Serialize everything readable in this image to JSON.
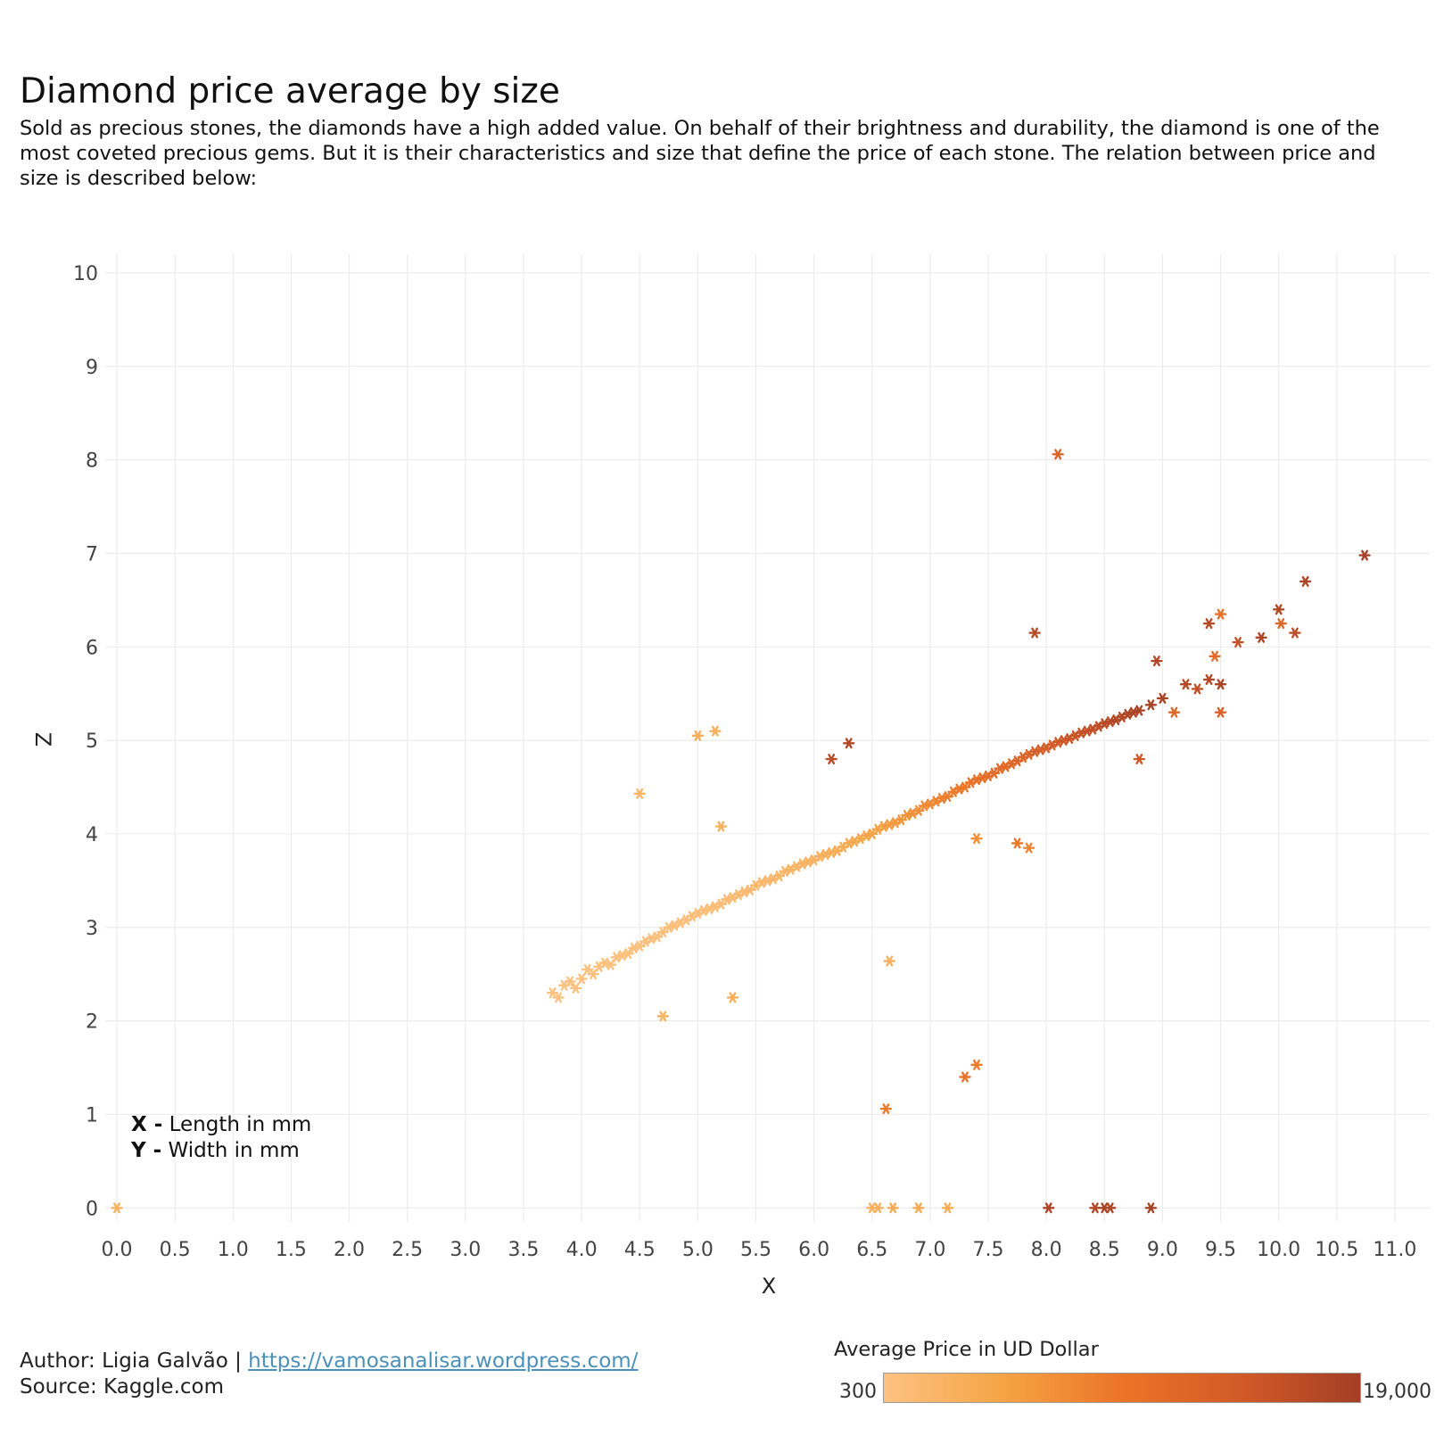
{
  "header": {
    "title": "Diamond price average by size",
    "subtitle": "Sold as precious stones, the diamonds have a high added value. On behalf of their brightness and durability, the diamond is one of the most coveted precious gems. But it is their characteristics and size that define the price of each stone. The relation between price and size is described below:"
  },
  "notes": {
    "x_key": "X -",
    "x_text": "Length in mm",
    "y_key": "Y -",
    "y_text": "Width in mm"
  },
  "footer": {
    "author_prefix": "Author: Ligia Galvão | ",
    "author_link": "https://vamosanalisar.wordpress.com/",
    "source": "Source: Kaggle.com"
  },
  "legend": {
    "title": "Average Price in UD Dollar",
    "min_label": "300",
    "max_label": "19,000",
    "colors": [
      "#fdc281",
      "#f5a445",
      "#ec7427",
      "#d25a27",
      "#a33f26"
    ]
  },
  "chart_data": {
    "type": "scatter",
    "title": "Diamond price average by size",
    "xlabel": "X",
    "ylabel": "Z",
    "xlim": [
      -0.1,
      11.3
    ],
    "ylim": [
      -0.15,
      10.2
    ],
    "xticks": [
      0.0,
      0.5,
      1.0,
      1.5,
      2.0,
      2.5,
      3.0,
      3.5,
      4.0,
      4.5,
      5.0,
      5.5,
      6.0,
      6.5,
      7.0,
      7.5,
      8.0,
      8.5,
      9.0,
      9.5,
      10.0,
      10.5,
      11.0
    ],
    "xtick_labels": [
      "0.0",
      "0.5",
      "1.0",
      "1.5",
      "2.0",
      "2.5",
      "3.0",
      "3.5",
      "4.0",
      "4.5",
      "5.0",
      "5.5",
      "6.0",
      "6.5",
      "7.0",
      "7.5",
      "8.0",
      "8.5",
      "9.0",
      "9.5",
      "10.0",
      "10.5",
      "11.0"
    ],
    "yticks": [
      0,
      1,
      2,
      3,
      4,
      5,
      6,
      7,
      8,
      9,
      10
    ],
    "ytick_labels": [
      "0",
      "1",
      "2",
      "3",
      "4",
      "5",
      "6",
      "7",
      "8",
      "9",
      "10"
    ],
    "grid": true,
    "color_metric": "Average Price in UD Dollar",
    "color_range": [
      300,
      19000
    ],
    "marker": "asterisk",
    "points": [
      {
        "x": 0.0,
        "z": 0.0,
        "price": 3000
      },
      {
        "x": 3.75,
        "z": 2.3,
        "price": 350
      },
      {
        "x": 3.8,
        "z": 2.25,
        "price": 360
      },
      {
        "x": 3.85,
        "z": 2.38,
        "price": 380
      },
      {
        "x": 3.9,
        "z": 2.42,
        "price": 400
      },
      {
        "x": 3.95,
        "z": 2.35,
        "price": 410
      },
      {
        "x": 4.0,
        "z": 2.45,
        "price": 430
      },
      {
        "x": 4.05,
        "z": 2.55,
        "price": 450
      },
      {
        "x": 4.1,
        "z": 2.5,
        "price": 460
      },
      {
        "x": 4.15,
        "z": 2.58,
        "price": 480
      },
      {
        "x": 4.2,
        "z": 2.62,
        "price": 500
      },
      {
        "x": 4.25,
        "z": 2.6,
        "price": 520
      },
      {
        "x": 4.3,
        "z": 2.68,
        "price": 540
      },
      {
        "x": 4.35,
        "z": 2.7,
        "price": 560
      },
      {
        "x": 4.4,
        "z": 2.72,
        "price": 590
      },
      {
        "x": 4.45,
        "z": 2.78,
        "price": 620
      },
      {
        "x": 4.5,
        "z": 2.8,
        "price": 650
      },
      {
        "x": 4.55,
        "z": 2.85,
        "price": 680
      },
      {
        "x": 4.6,
        "z": 2.88,
        "price": 710
      },
      {
        "x": 4.65,
        "z": 2.9,
        "price": 740
      },
      {
        "x": 4.7,
        "z": 2.95,
        "price": 780
      },
      {
        "x": 4.75,
        "z": 3.0,
        "price": 820
      },
      {
        "x": 4.8,
        "z": 3.02,
        "price": 860
      },
      {
        "x": 4.85,
        "z": 3.05,
        "price": 900
      },
      {
        "x": 4.9,
        "z": 3.08,
        "price": 950
      },
      {
        "x": 4.95,
        "z": 3.12,
        "price": 1000
      },
      {
        "x": 5.0,
        "z": 3.15,
        "price": 1050
      },
      {
        "x": 5.05,
        "z": 3.18,
        "price": 1100
      },
      {
        "x": 5.1,
        "z": 3.2,
        "price": 1150
      },
      {
        "x": 5.15,
        "z": 3.22,
        "price": 1200
      },
      {
        "x": 5.2,
        "z": 3.25,
        "price": 1280
      },
      {
        "x": 5.25,
        "z": 3.3,
        "price": 1350
      },
      {
        "x": 5.3,
        "z": 3.32,
        "price": 1420
      },
      {
        "x": 5.35,
        "z": 3.35,
        "price": 1500
      },
      {
        "x": 5.4,
        "z": 3.38,
        "price": 1600
      },
      {
        "x": 5.45,
        "z": 3.4,
        "price": 1680
      },
      {
        "x": 5.5,
        "z": 3.45,
        "price": 1750
      },
      {
        "x": 5.55,
        "z": 3.48,
        "price": 1850
      },
      {
        "x": 5.6,
        "z": 3.5,
        "price": 1950
      },
      {
        "x": 5.65,
        "z": 3.52,
        "price": 2050
      },
      {
        "x": 5.7,
        "z": 3.55,
        "price": 2150
      },
      {
        "x": 5.75,
        "z": 3.6,
        "price": 2280
      },
      {
        "x": 5.8,
        "z": 3.62,
        "price": 2400
      },
      {
        "x": 5.85,
        "z": 3.65,
        "price": 2500
      },
      {
        "x": 5.9,
        "z": 3.68,
        "price": 2600
      },
      {
        "x": 5.95,
        "z": 3.7,
        "price": 2750
      },
      {
        "x": 6.0,
        "z": 3.72,
        "price": 2900
      },
      {
        "x": 6.05,
        "z": 3.76,
        "price": 3050
      },
      {
        "x": 6.1,
        "z": 3.78,
        "price": 3200
      },
      {
        "x": 6.15,
        "z": 3.8,
        "price": 3400
      },
      {
        "x": 6.2,
        "z": 3.82,
        "price": 3600
      },
      {
        "x": 6.25,
        "z": 3.86,
        "price": 3800
      },
      {
        "x": 6.3,
        "z": 3.9,
        "price": 4000
      },
      {
        "x": 6.35,
        "z": 3.92,
        "price": 4200
      },
      {
        "x": 6.4,
        "z": 3.95,
        "price": 4450
      },
      {
        "x": 6.45,
        "z": 3.98,
        "price": 4700
      },
      {
        "x": 6.5,
        "z": 4.0,
        "price": 4950
      },
      {
        "x": 6.55,
        "z": 4.05,
        "price": 5200
      },
      {
        "x": 6.6,
        "z": 4.08,
        "price": 5450
      },
      {
        "x": 6.65,
        "z": 4.1,
        "price": 5700
      },
      {
        "x": 6.7,
        "z": 4.12,
        "price": 6000
      },
      {
        "x": 6.75,
        "z": 4.15,
        "price": 6300
      },
      {
        "x": 6.8,
        "z": 4.2,
        "price": 6600
      },
      {
        "x": 6.85,
        "z": 4.22,
        "price": 6900
      },
      {
        "x": 6.9,
        "z": 4.25,
        "price": 7200
      },
      {
        "x": 6.95,
        "z": 4.3,
        "price": 7500
      },
      {
        "x": 7.0,
        "z": 4.32,
        "price": 7800
      },
      {
        "x": 7.05,
        "z": 4.35,
        "price": 8100
      },
      {
        "x": 7.1,
        "z": 4.38,
        "price": 8400
      },
      {
        "x": 7.15,
        "z": 4.4,
        "price": 8700
      },
      {
        "x": 7.2,
        "z": 4.45,
        "price": 9000
      },
      {
        "x": 7.25,
        "z": 4.48,
        "price": 9300
      },
      {
        "x": 7.3,
        "z": 4.5,
        "price": 9600
      },
      {
        "x": 7.35,
        "z": 4.55,
        "price": 9900
      },
      {
        "x": 7.4,
        "z": 4.58,
        "price": 10200
      },
      {
        "x": 7.45,
        "z": 4.6,
        "price": 10500
      },
      {
        "x": 7.5,
        "z": 4.62,
        "price": 10800
      },
      {
        "x": 7.55,
        "z": 4.65,
        "price": 11100
      },
      {
        "x": 7.6,
        "z": 4.7,
        "price": 11400
      },
      {
        "x": 7.65,
        "z": 4.72,
        "price": 11700
      },
      {
        "x": 7.7,
        "z": 4.75,
        "price": 12000
      },
      {
        "x": 7.75,
        "z": 4.78,
        "price": 12300
      },
      {
        "x": 7.8,
        "z": 4.82,
        "price": 12600
      },
      {
        "x": 7.85,
        "z": 4.85,
        "price": 12900
      },
      {
        "x": 7.9,
        "z": 4.88,
        "price": 13200
      },
      {
        "x": 7.95,
        "z": 4.9,
        "price": 13500
      },
      {
        "x": 8.0,
        "z": 4.92,
        "price": 13800
      },
      {
        "x": 8.05,
        "z": 4.95,
        "price": 14100
      },
      {
        "x": 8.1,
        "z": 4.98,
        "price": 14400
      },
      {
        "x": 8.15,
        "z": 5.0,
        "price": 14700
      },
      {
        "x": 8.2,
        "z": 5.02,
        "price": 15000
      },
      {
        "x": 8.25,
        "z": 5.05,
        "price": 15300
      },
      {
        "x": 8.3,
        "z": 5.08,
        "price": 15600
      },
      {
        "x": 8.35,
        "z": 5.1,
        "price": 15900
      },
      {
        "x": 8.4,
        "z": 5.12,
        "price": 16200
      },
      {
        "x": 8.45,
        "z": 5.15,
        "price": 16500
      },
      {
        "x": 8.5,
        "z": 5.18,
        "price": 16800
      },
      {
        "x": 8.55,
        "z": 5.2,
        "price": 17100
      },
      {
        "x": 8.6,
        "z": 5.22,
        "price": 17400
      },
      {
        "x": 8.65,
        "z": 5.25,
        "price": 17600
      },
      {
        "x": 8.7,
        "z": 5.28,
        "price": 17800
      },
      {
        "x": 8.75,
        "z": 5.3,
        "price": 18000
      },
      {
        "x": 8.8,
        "z": 5.32,
        "price": 18200
      },
      {
        "x": 8.9,
        "z": 5.38,
        "price": 18500
      },
      {
        "x": 9.0,
        "z": 5.45,
        "price": 18200
      },
      {
        "x": 8.95,
        "z": 5.85,
        "price": 17600
      },
      {
        "x": 9.2,
        "z": 5.6,
        "price": 17000
      },
      {
        "x": 9.3,
        "z": 5.55,
        "price": 16000
      },
      {
        "x": 9.4,
        "z": 5.65,
        "price": 17200
      },
      {
        "x": 9.5,
        "z": 5.6,
        "price": 18100
      },
      {
        "x": 9.45,
        "z": 5.9,
        "price": 11000
      },
      {
        "x": 9.5,
        "z": 6.35,
        "price": 10500
      },
      {
        "x": 9.4,
        "z": 6.25,
        "price": 17000
      },
      {
        "x": 9.65,
        "z": 6.05,
        "price": 15500
      },
      {
        "x": 9.85,
        "z": 6.1,
        "price": 17800
      },
      {
        "x": 10.0,
        "z": 6.4,
        "price": 17500
      },
      {
        "x": 10.02,
        "z": 6.25,
        "price": 12000
      },
      {
        "x": 10.14,
        "z": 6.15,
        "price": 16500
      },
      {
        "x": 10.23,
        "z": 6.7,
        "price": 18000
      },
      {
        "x": 10.74,
        "z": 6.98,
        "price": 18500
      },
      {
        "x": 9.1,
        "z": 5.3,
        "price": 12000
      },
      {
        "x": 8.8,
        "z": 4.8,
        "price": 14500
      },
      {
        "x": 9.5,
        "z": 5.3,
        "price": 13000
      },
      {
        "x": 8.1,
        "z": 8.06,
        "price": 12500
      },
      {
        "x": 7.9,
        "z": 6.15,
        "price": 17000
      },
      {
        "x": 6.3,
        "z": 4.97,
        "price": 17500
      },
      {
        "x": 6.15,
        "z": 4.8,
        "price": 16500
      },
      {
        "x": 5.0,
        "z": 5.05,
        "price": 3500
      },
      {
        "x": 5.15,
        "z": 5.1,
        "price": 3200
      },
      {
        "x": 4.5,
        "z": 4.43,
        "price": 2200
      },
      {
        "x": 5.2,
        "z": 4.08,
        "price": 3000
      },
      {
        "x": 5.3,
        "z": 2.25,
        "price": 3500
      },
      {
        "x": 4.7,
        "z": 2.05,
        "price": 2500
      },
      {
        "x": 6.65,
        "z": 2.64,
        "price": 3200
      },
      {
        "x": 7.4,
        "z": 1.53,
        "price": 9000
      },
      {
        "x": 7.3,
        "z": 1.4,
        "price": 10000
      },
      {
        "x": 6.62,
        "z": 1.06,
        "price": 9000
      },
      {
        "x": 7.85,
        "z": 3.85,
        "price": 8000
      },
      {
        "x": 7.75,
        "z": 3.9,
        "price": 9500
      },
      {
        "x": 7.4,
        "z": 3.95,
        "price": 7000
      },
      {
        "x": 6.5,
        "z": 0.0,
        "price": 3000
      },
      {
        "x": 6.55,
        "z": 0.0,
        "price": 3200
      },
      {
        "x": 6.68,
        "z": 0.0,
        "price": 3800
      },
      {
        "x": 6.9,
        "z": 0.0,
        "price": 4000
      },
      {
        "x": 7.15,
        "z": 0.0,
        "price": 3700
      },
      {
        "x": 8.02,
        "z": 0.0,
        "price": 18000
      },
      {
        "x": 8.42,
        "z": 0.0,
        "price": 17500
      },
      {
        "x": 8.5,
        "z": 0.0,
        "price": 18200
      },
      {
        "x": 8.55,
        "z": 0.0,
        "price": 17800
      },
      {
        "x": 8.9,
        "z": 0.0,
        "price": 18500
      }
    ]
  }
}
